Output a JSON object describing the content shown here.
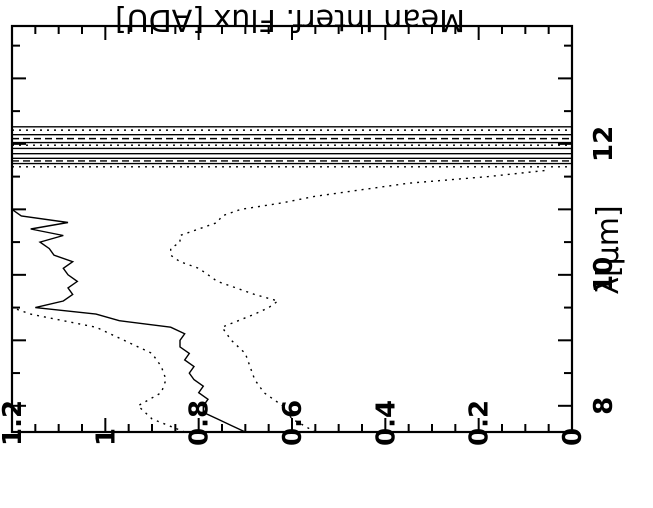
{
  "chart_data": {
    "type": "line",
    "orientation": "rotated-90-clockwise",
    "title": "",
    "xlabel": "λ[μm]",
    "ylabel": "Mean Interf. Flux [ADU]",
    "xlim": [
      7.6,
      13.8
    ],
    "ylim": [
      0,
      1.2
    ],
    "x_ticks": [
      {
        "value": 8,
        "label": "8"
      },
      {
        "value": 10,
        "label": "10"
      },
      {
        "value": 12,
        "label": "12"
      }
    ],
    "y_ticks": [
      {
        "value": 0,
        "label": "0"
      },
      {
        "value": 0.2,
        "label": "0.2"
      },
      {
        "value": 0.4,
        "label": "0.4"
      },
      {
        "value": 0.6,
        "label": "0.6"
      },
      {
        "value": 0.8,
        "label": "0.8"
      },
      {
        "value": 1,
        "label": "1"
      },
      {
        "value": 1.2,
        "label": "1.2"
      }
    ],
    "grid": false,
    "legend": "none",
    "series": [
      {
        "style": "solid",
        "x": [
          7.6,
          7.7,
          7.8,
          7.9,
          8.0,
          8.1,
          8.2,
          8.3,
          8.4,
          8.5,
          8.6,
          8.7,
          8.8,
          8.9,
          9.0,
          9.1,
          9.2,
          9.3,
          9.4,
          9.5,
          9.6,
          9.7,
          9.8,
          9.9,
          10.0,
          10.1,
          10.2,
          10.3,
          10.4,
          10.5,
          10.6,
          10.7,
          10.8,
          10.9,
          11.0
        ],
        "y": [
          0.7,
          0.73,
          0.76,
          0.79,
          0.79,
          0.78,
          0.8,
          0.79,
          0.81,
          0.82,
          0.81,
          0.83,
          0.82,
          0.84,
          0.84,
          0.83,
          0.86,
          0.97,
          1.02,
          1.15,
          1.09,
          1.07,
          1.08,
          1.06,
          1.08,
          1.09,
          1.07,
          1.11,
          1.12,
          1.14,
          1.09,
          1.16,
          1.08,
          1.18,
          1.2
        ]
      },
      {
        "style": "dotted",
        "x": [
          7.6,
          7.8,
          8.0,
          8.2,
          8.4,
          8.6,
          8.8,
          9.0,
          9.2,
          9.4,
          9.5,
          9.6,
          9.7,
          9.8,
          9.9,
          10.0,
          10.1,
          10.2,
          10.3,
          10.4,
          10.5,
          10.6,
          10.7,
          10.8,
          10.9,
          11.0,
          11.1,
          11.2,
          11.3,
          11.4,
          11.5,
          11.6
        ],
        "y": [
          0.55,
          0.6,
          0.62,
          0.66,
          0.68,
          0.69,
          0.7,
          0.73,
          0.75,
          0.68,
          0.65,
          0.63,
          0.68,
          0.72,
          0.76,
          0.78,
          0.8,
          0.84,
          0.86,
          0.86,
          0.84,
          0.84,
          0.8,
          0.76,
          0.75,
          0.71,
          0.62,
          0.55,
          0.45,
          0.35,
          0.18,
          0.05
        ]
      },
      {
        "style": "dotted",
        "x": [
          7.6,
          7.8,
          8.0,
          8.2,
          8.4,
          8.6,
          8.8,
          9.0,
          9.2,
          9.3,
          9.4,
          9.5
        ],
        "y": [
          0.83,
          0.9,
          0.93,
          0.88,
          0.87,
          0.88,
          0.9,
          0.96,
          1.02,
          1.09,
          1.16,
          1.2
        ]
      }
    ],
    "vertical_lines": [
      {
        "x": 11.65,
        "style": "dotted"
      },
      {
        "x": 11.7,
        "style": "solid"
      },
      {
        "x": 11.74,
        "style": "dashed"
      },
      {
        "x": 11.78,
        "style": "solid"
      },
      {
        "x": 11.85,
        "style": "solid"
      },
      {
        "x": 11.93,
        "style": "solid"
      },
      {
        "x": 11.98,
        "style": "dotted"
      },
      {
        "x": 12.02,
        "style": "solid"
      },
      {
        "x": 12.08,
        "style": "dashed"
      },
      {
        "x": 12.14,
        "style": "solid"
      },
      {
        "x": 12.21,
        "style": "dotted"
      },
      {
        "x": 12.26,
        "style": "solid"
      }
    ]
  }
}
